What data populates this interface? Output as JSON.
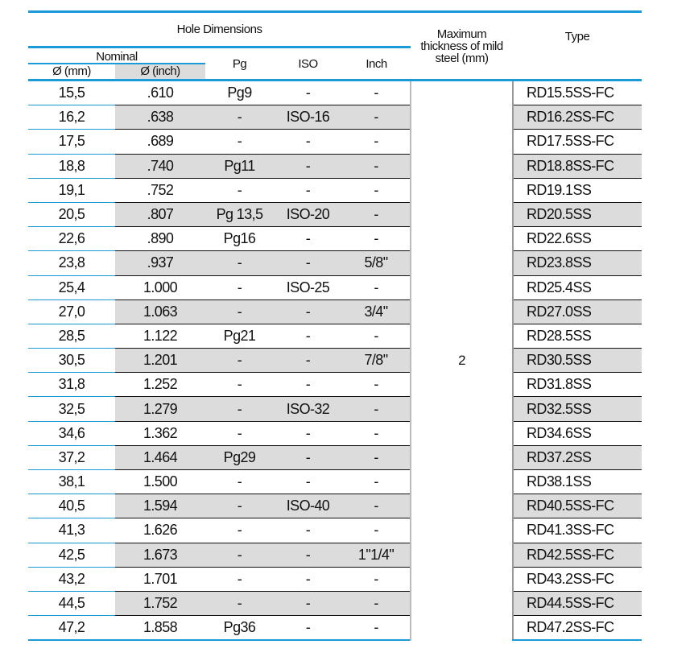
{
  "header": {
    "group": "Hole Dimensions",
    "nominal": "Nominal",
    "mm": "Ø (mm)",
    "inch": "Ø (inch)",
    "pg": "Pg",
    "iso": "ISO",
    "inch_size": "Inch",
    "thickness": "Maximum thickness of mild steel (mm)",
    "type": "Type"
  },
  "thickness_value": "2",
  "rows": [
    [
      "15,5",
      ".610",
      "Pg9",
      "-",
      "-",
      "RD15.5SS-FC"
    ],
    [
      "16,2",
      ".638",
      "-",
      "ISO-16",
      "-",
      "RD16.2SS-FC"
    ],
    [
      "17,5",
      ".689",
      "-",
      "-",
      "-",
      "RD17.5SS-FC"
    ],
    [
      "18,8",
      ".740",
      "Pg11",
      "-",
      "-",
      "RD18.8SS-FC"
    ],
    [
      "19,1",
      ".752",
      "-",
      "-",
      "-",
      "RD19.1SS"
    ],
    [
      "20,5",
      ".807",
      "Pg 13,5",
      "ISO-20",
      "-",
      "RD20.5SS"
    ],
    [
      "22,6",
      ".890",
      "Pg16",
      "-",
      "-",
      "RD22.6SS"
    ],
    [
      "23,8",
      ".937",
      "-",
      "-",
      "5/8\"",
      "RD23.8SS"
    ],
    [
      "25,4",
      "1.000",
      "-",
      "ISO-25",
      "-",
      "RD25.4SS"
    ],
    [
      "27,0",
      "1.063",
      "-",
      "-",
      "3/4\"",
      "RD27.0SS"
    ],
    [
      "28,5",
      "1.122",
      "Pg21",
      "-",
      "-",
      "RD28.5SS"
    ],
    [
      "30,5",
      "1.201",
      "-",
      "-",
      "7/8\"",
      "RD30.5SS"
    ],
    [
      "31,8",
      "1.252",
      "-",
      "-",
      "-",
      "RD31.8SS"
    ],
    [
      "32,5",
      "1.279",
      "-",
      "ISO-32",
      "-",
      "RD32.5SS"
    ],
    [
      "34,6",
      "1.362",
      "-",
      "-",
      "-",
      "RD34.6SS"
    ],
    [
      "37,2",
      "1.464",
      "Pg29",
      "-",
      "-",
      "RD37.2SS"
    ],
    [
      "38,1",
      "1.500",
      "-",
      "-",
      "-",
      "RD38.1SS"
    ],
    [
      "40,5",
      "1.594",
      "-",
      "ISO-40",
      "-",
      "RD40.5SS-FC"
    ],
    [
      "41,3",
      "1.626",
      "-",
      "-",
      "-",
      "RD41.3SS-FC"
    ],
    [
      "42,5",
      "1.673",
      "-",
      "-",
      "1\"1/4\"",
      "RD42.5SS-FC"
    ],
    [
      "43,2",
      "1.701",
      "-",
      "-",
      "-",
      "RD43.2SS-FC"
    ],
    [
      "44,5",
      "1.752",
      "-",
      "-",
      "-",
      "RD44.5SS-FC"
    ],
    [
      "47,2",
      "1.858",
      "Pg36",
      "-",
      "-",
      "RD47.2SS-FC"
    ]
  ]
}
